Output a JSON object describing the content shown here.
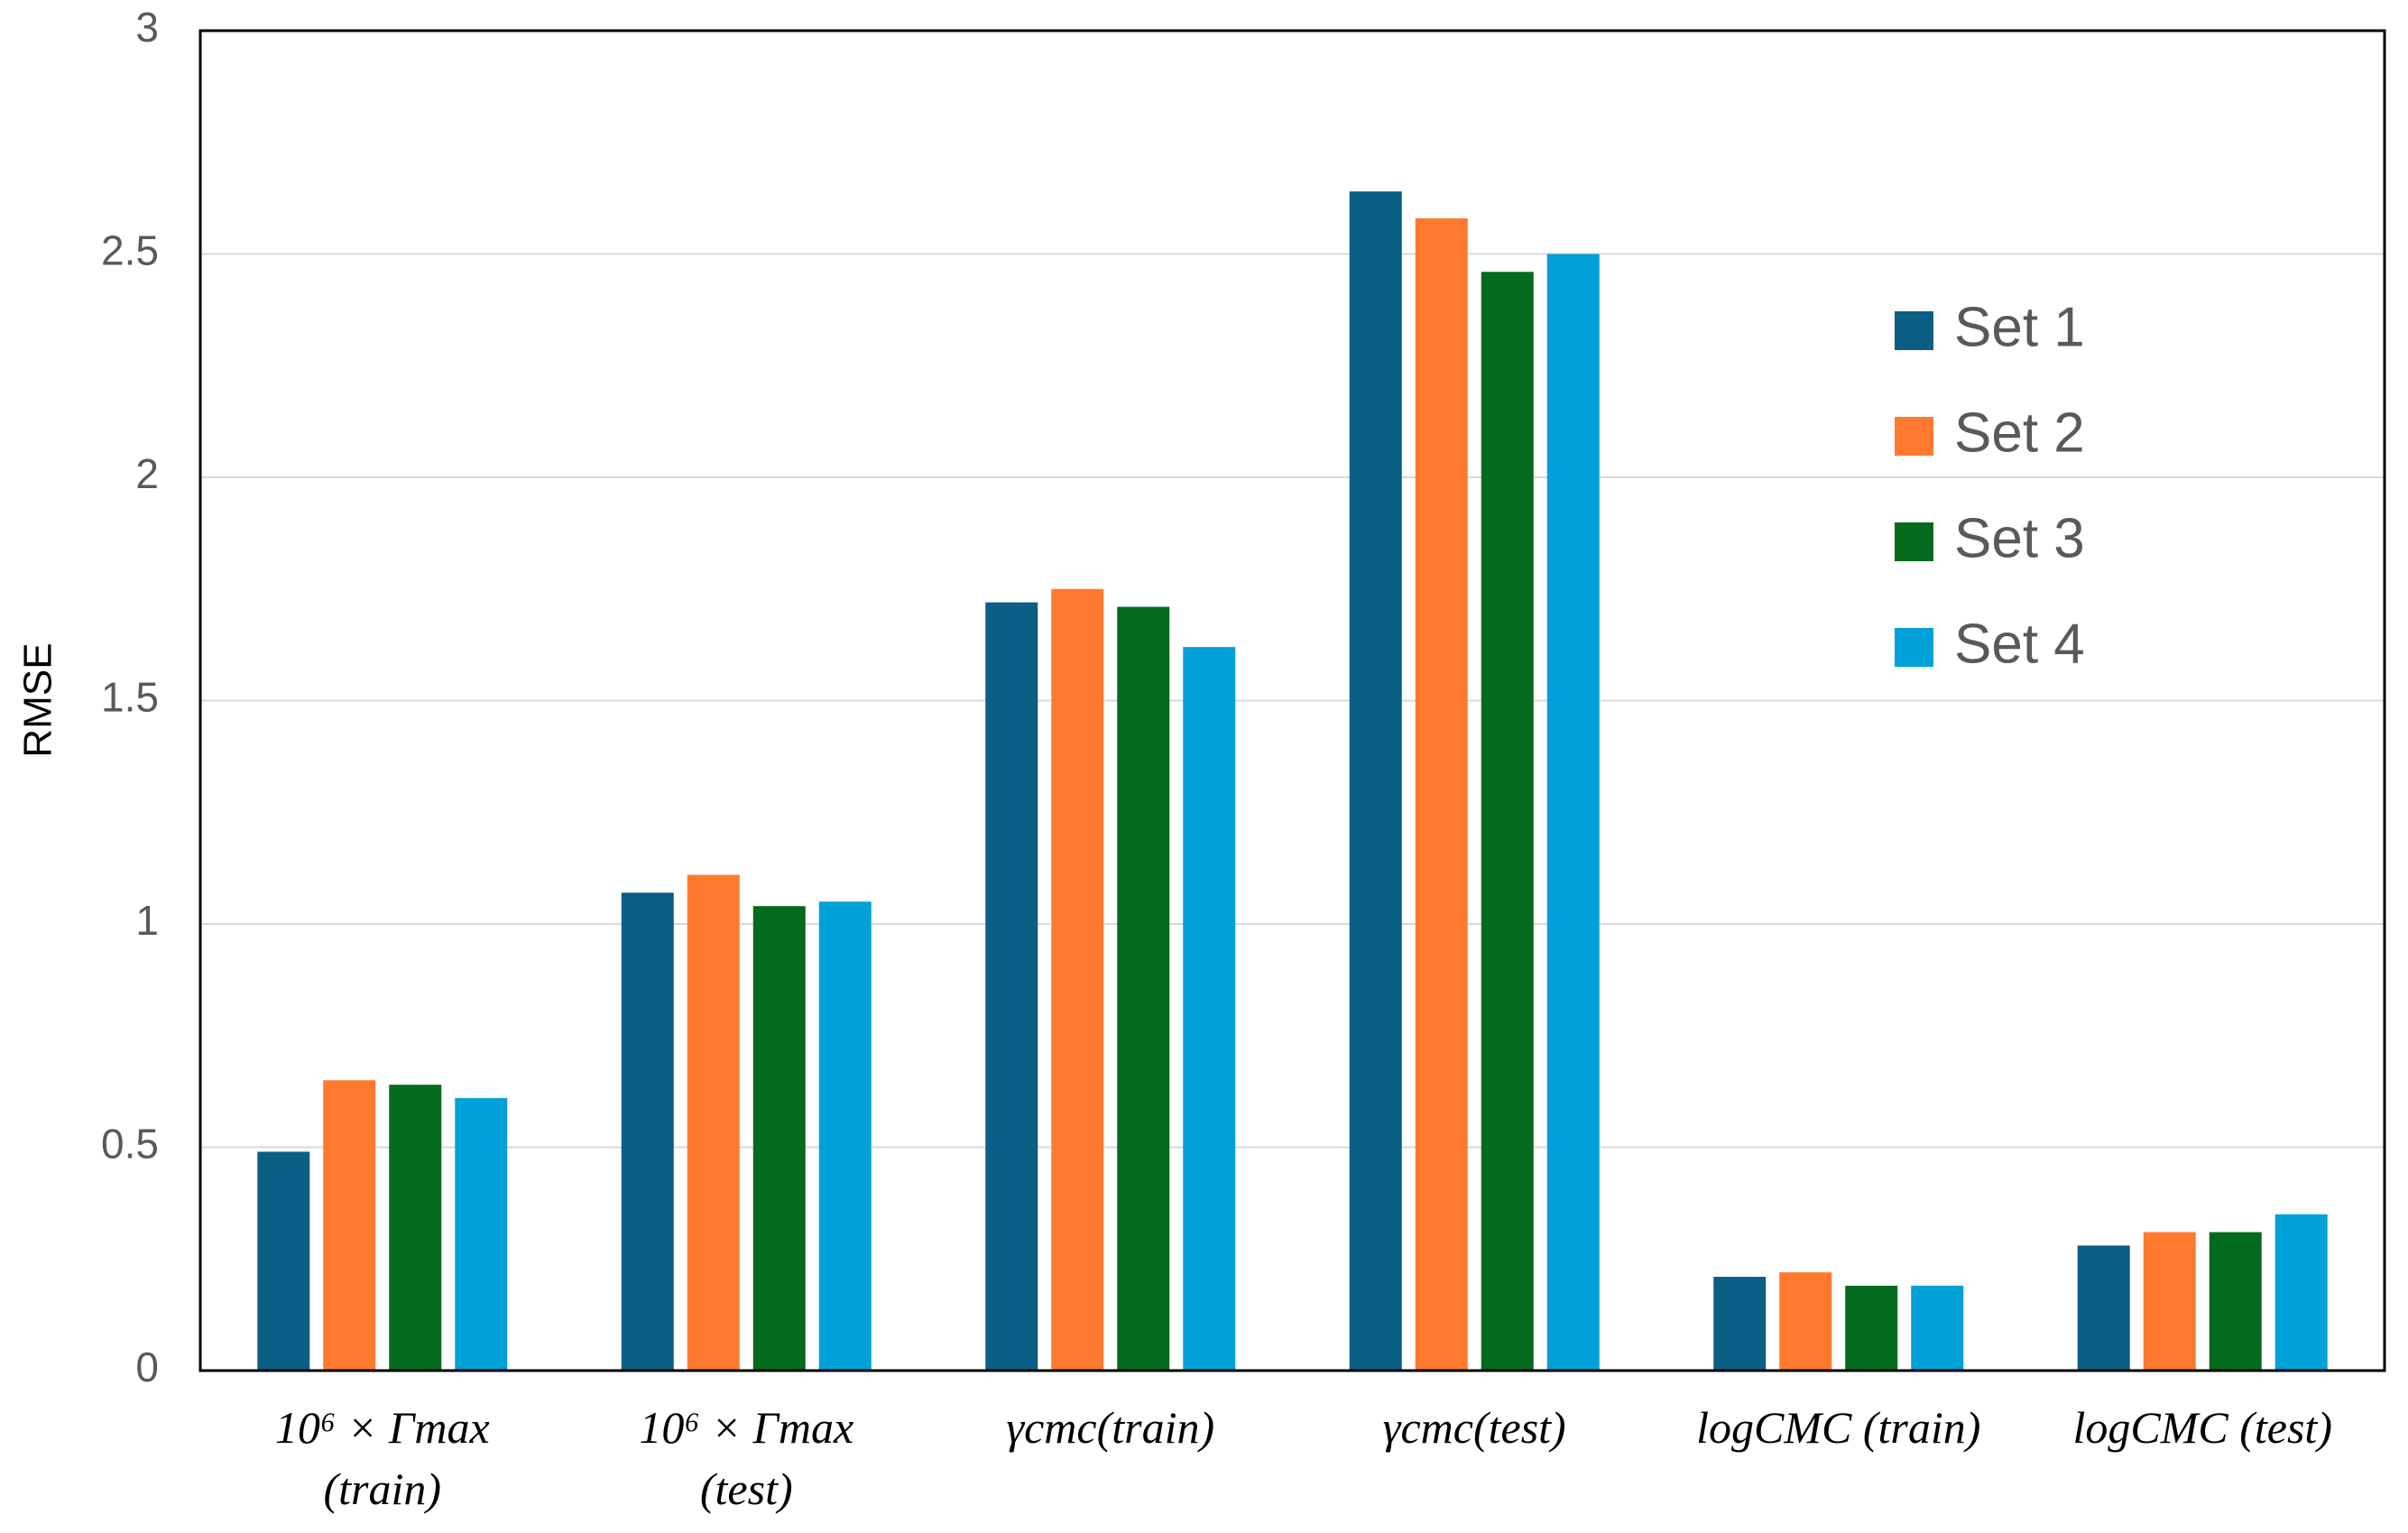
{
  "chart_data": {
    "type": "bar",
    "y_label": "RMSE",
    "categories": [
      [
        "10⁶ × Γmax",
        "(train)"
      ],
      [
        "10⁶ × Γmax",
        "(test)"
      ],
      [
        "γcmc(train)"
      ],
      [
        "γcmc(test)"
      ],
      [
        "logCMC (train)"
      ],
      [
        "logCMC (test)"
      ]
    ],
    "series": [
      {
        "name": "Set 1",
        "color": "#0b5e84",
        "values": [
          0.49,
          1.07,
          1.72,
          2.64,
          0.21,
          0.28
        ]
      },
      {
        "name": "Set 2",
        "color": "#ff7a2e",
        "values": [
          0.65,
          1.11,
          1.75,
          2.58,
          0.22,
          0.31
        ]
      },
      {
        "name": "Set 3",
        "color": "#046a1c",
        "values": [
          0.64,
          1.04,
          1.71,
          2.46,
          0.19,
          0.31
        ]
      },
      {
        "name": "Set 4",
        "color": "#00a1d9",
        "values": [
          0.61,
          1.05,
          1.62,
          2.5,
          0.19,
          0.35
        ]
      }
    ],
    "ylim": [
      0,
      3
    ],
    "yticks": [
      0,
      0.5,
      1,
      1.5,
      2,
      2.5,
      3
    ],
    "grid": true
  }
}
